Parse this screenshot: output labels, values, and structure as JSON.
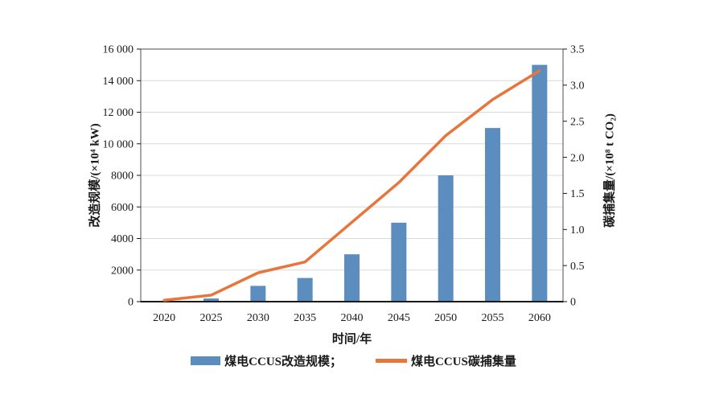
{
  "chart_data": {
    "type": "bar+line",
    "categories": [
      "2020",
      "2025",
      "2030",
      "2035",
      "2040",
      "2045",
      "2050",
      "2055",
      "2060"
    ],
    "series": [
      {
        "name": "煤电CCUS改造规模",
        "type": "bar",
        "axis": "left",
        "color": "#5b8dbe",
        "values": [
          0,
          200,
          1000,
          1500,
          3000,
          5000,
          8000,
          11000,
          15000
        ]
      },
      {
        "name": "煤电CCUS碳捕集量",
        "type": "line",
        "axis": "right",
        "color": "#e6763b",
        "values": [
          0.02,
          0.09,
          0.4,
          0.55,
          1.1,
          1.65,
          2.3,
          2.8,
          3.2
        ]
      }
    ],
    "left_axis": {
      "label": "改造规模/(×10⁴ kW)",
      "min": 0,
      "max": 16000,
      "tick_step": 2000,
      "tick_labels": [
        "0",
        "2000",
        "4000",
        "6000",
        "8000",
        "10 000",
        "12 000",
        "14 000",
        "16 000"
      ]
    },
    "right_axis": {
      "label": "碳捕集量/(×10⁸ t CO₂)",
      "min": 0,
      "max": 3.5,
      "tick_step": 0.5,
      "tick_labels": [
        "0",
        "0.5",
        "1.0",
        "1.5",
        "2.0",
        "2.5",
        "3.0",
        "3.5"
      ]
    },
    "xlabel": "时间/年",
    "legend": [
      {
        "label": "煤电CCUS改造规模；",
        "type": "bar"
      },
      {
        "label": "煤电CCUS碳捕集量",
        "type": "line"
      }
    ],
    "grid": true,
    "gridline_color": "#d9d9d9",
    "axis_color": "#4d4d4d"
  }
}
